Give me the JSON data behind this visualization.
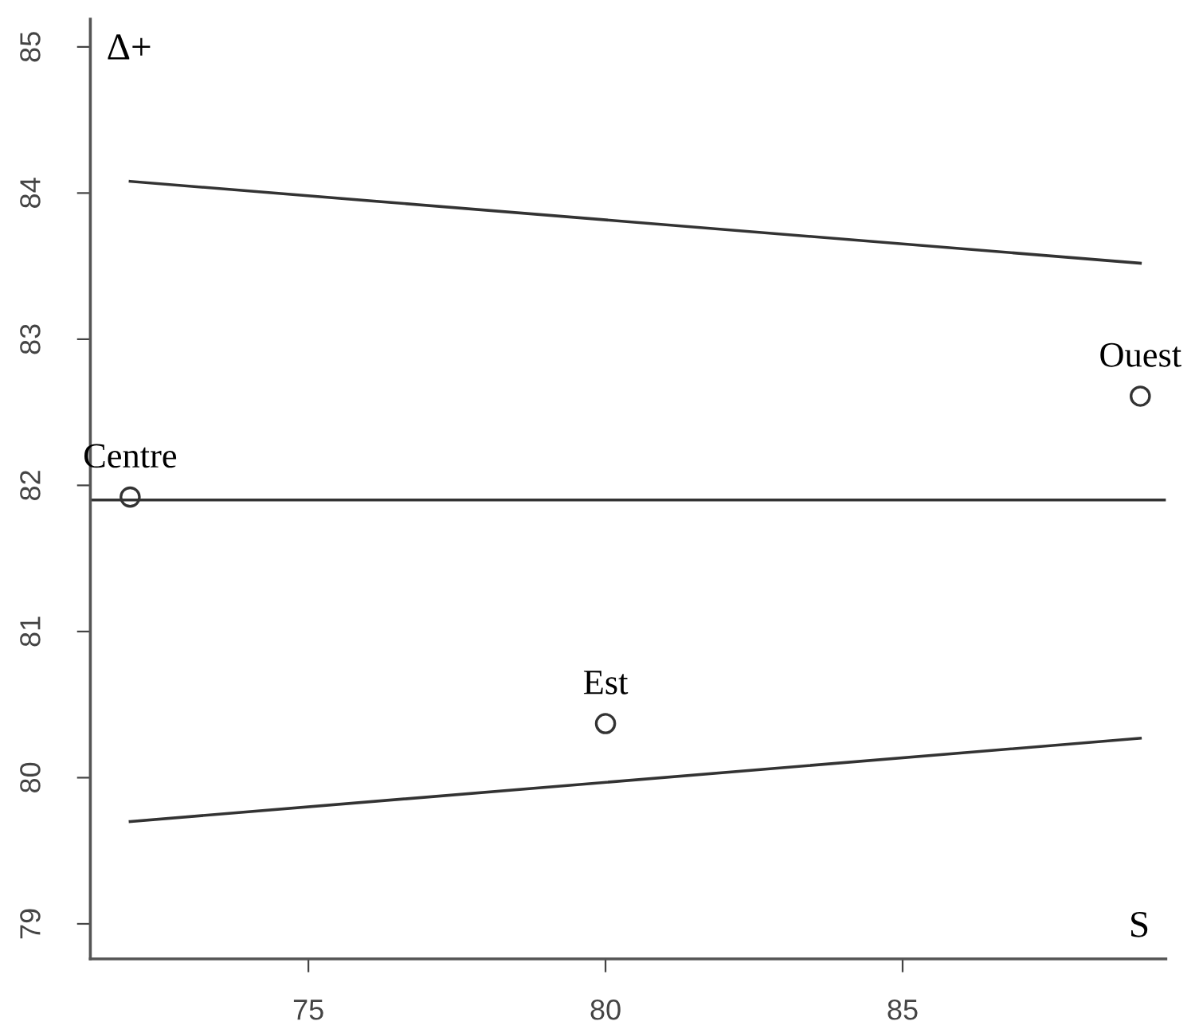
{
  "chart_data": {
    "type": "scatter",
    "xlabel": "S",
    "ylabel": "Δ+",
    "xlim": [
      71.33,
      89.43
    ],
    "ylim": [
      78.76,
      85.19
    ],
    "xticks": [
      75,
      80,
      85
    ],
    "yticks": [
      79,
      80,
      81,
      82,
      83,
      84,
      85
    ],
    "grid": false,
    "series": [
      {
        "marker": "circle",
        "color": "#333333",
        "x": [
          72,
          80,
          89
        ],
        "values": [
          81.92,
          80.37,
          82.61
        ]
      },
      {
        "type": "line",
        "color": "#333333",
        "x": [
          72,
          89
        ],
        "values": [
          84.08,
          83.52
        ]
      },
      {
        "type": "line",
        "color": "#333333",
        "x": [
          72,
          89
        ],
        "values": [
          79.7,
          80.27
        ]
      }
    ],
    "ref_lines": [
      {
        "axis": "y",
        "value": 81.9,
        "color": "#333333"
      }
    ],
    "annotations": [
      {
        "text": "Centre",
        "x": 72,
        "y": 81.92
      },
      {
        "text": "Est",
        "x": 80,
        "y": 80.37
      },
      {
        "text": "Ouest",
        "x": 89,
        "y": 82.61
      }
    ]
  }
}
